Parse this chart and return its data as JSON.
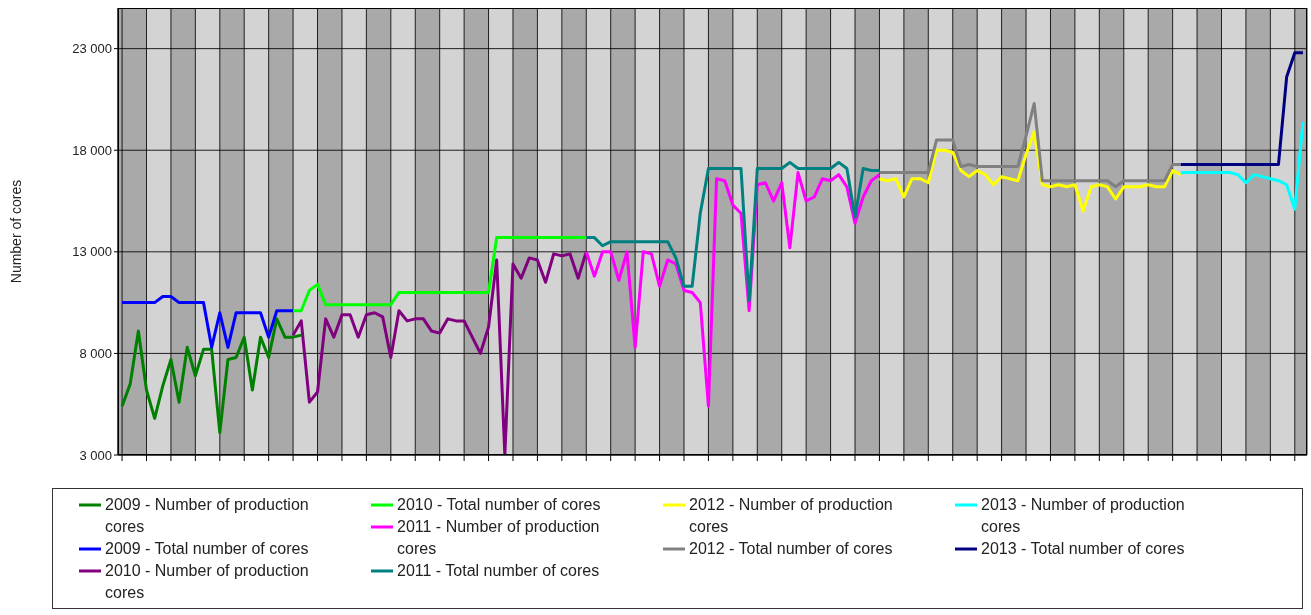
{
  "chart_data": {
    "type": "line",
    "ylabel": "Number of cores",
    "ylim": [
      3000,
      25000
    ],
    "yticks": [
      {
        "value": 3000,
        "label": "3 000"
      },
      {
        "value": 8000,
        "label": "8 000"
      },
      {
        "value": 13000,
        "label": "13 000"
      },
      {
        "value": 18000,
        "label": "18 000"
      },
      {
        "value": 23000,
        "label": "23 000"
      }
    ],
    "grid": true,
    "legend": "bottom",
    "categories": [
      null,
      null,
      null,
      null,
      null,
      null,
      null,
      null,
      null,
      null,
      null,
      null,
      null,
      null,
      null,
      null,
      null,
      null,
      null,
      null,
      null,
      null,
      null,
      null,
      null,
      null,
      null,
      null,
      null,
      null,
      null,
      null,
      null,
      null,
      null,
      null,
      null,
      null,
      null,
      null,
      null,
      null,
      null,
      null,
      null,
      null,
      null,
      null,
      null,
      null,
      null,
      null,
      null,
      null,
      null,
      null,
      null,
      null,
      null,
      null,
      null,
      null,
      null,
      null,
      null,
      null,
      null,
      null,
      null,
      null,
      null,
      null,
      null,
      null,
      null,
      null,
      null,
      null,
      null,
      null,
      null,
      null,
      null,
      null,
      null,
      null,
      null,
      null,
      null,
      null,
      null,
      null,
      null,
      null,
      null,
      null,
      null,
      null,
      null,
      null,
      null,
      null,
      null,
      null,
      null,
      null,
      null,
      null,
      null,
      null,
      null,
      null,
      null,
      null,
      null,
      null,
      null,
      null,
      null,
      null,
      null,
      null,
      null,
      null,
      null,
      null,
      null,
      null,
      null,
      null,
      null,
      null,
      null,
      null,
      null,
      null,
      null,
      null,
      null,
      null,
      null,
      null,
      null,
      null,
      null,
      null
    ],
    "series": [
      {
        "name": "2009 - Number of production cores",
        "color": "#008000",
        "values": [
          5400,
          6500,
          9100,
          6200,
          4800,
          6400,
          7700,
          5600,
          8300,
          6900,
          8200,
          8200,
          4100,
          7700,
          7800,
          8800,
          6200,
          8800,
          7800,
          9700,
          8800,
          8800,
          8900,
          null,
          null,
          null,
          null,
          null,
          null,
          null,
          null,
          null,
          null,
          null,
          null,
          null,
          null,
          null,
          null,
          null,
          null,
          null,
          null,
          null,
          null,
          null,
          null,
          null,
          null,
          null,
          null,
          null,
          null,
          null,
          null,
          null,
          null,
          null,
          null,
          null,
          null,
          null,
          null,
          null,
          null,
          null,
          null,
          null,
          null,
          null,
          null,
          null,
          null,
          null,
          null,
          null,
          null,
          null,
          null,
          null,
          null,
          null,
          null,
          null,
          null,
          null,
          null,
          null,
          null,
          null,
          null,
          null,
          null,
          null,
          null,
          null,
          null,
          null,
          null,
          null,
          null,
          null,
          null,
          null,
          null,
          null,
          null,
          null,
          null,
          null,
          null,
          null,
          null,
          null,
          null,
          null,
          null,
          null,
          null,
          null,
          null,
          null,
          null,
          null,
          null,
          null,
          null,
          null,
          null,
          null,
          null,
          null,
          null,
          null,
          null,
          null,
          null,
          null,
          null,
          null,
          null,
          null,
          null,
          null,
          null,
          null
        ]
      },
      {
        "name": "2009 - Total number of cores",
        "color": "#0000ff",
        "values": [
          10500,
          10500,
          10500,
          10500,
          10500,
          10800,
          10800,
          10500,
          10500,
          10500,
          10500,
          8300,
          10000,
          8300,
          10000,
          10000,
          10000,
          10000,
          8800,
          10100,
          10100,
          10100,
          null,
          null,
          null,
          null,
          null,
          null,
          null,
          null,
          null,
          null,
          null,
          null,
          null,
          null,
          null,
          null,
          null,
          null,
          null,
          null,
          null,
          null,
          null,
          null,
          null,
          null,
          null,
          null,
          null,
          null,
          null,
          null,
          null,
          null,
          null,
          null,
          null,
          null,
          null,
          null,
          null,
          null,
          null,
          null,
          null,
          null,
          null,
          null,
          null,
          null,
          null,
          null,
          null,
          null,
          null,
          null,
          null,
          null,
          null,
          null,
          null,
          null,
          null,
          null,
          null,
          null,
          null,
          null,
          null,
          null,
          null,
          null,
          null,
          null,
          null,
          null,
          null,
          null,
          null,
          null,
          null,
          null,
          null,
          null,
          null,
          null,
          null,
          null,
          null,
          null,
          null,
          null,
          null,
          null,
          null,
          null,
          null,
          null,
          null,
          null,
          null,
          null,
          null,
          null,
          null,
          null,
          null,
          null,
          null,
          null,
          null,
          null,
          null,
          null,
          null,
          null,
          null,
          null,
          null,
          null,
          null,
          null,
          null,
          null
        ]
      },
      {
        "name": "2010 - Number of production cores",
        "color": "#800080",
        "values": [
          null,
          null,
          null,
          null,
          null,
          null,
          null,
          null,
          null,
          null,
          null,
          null,
          null,
          null,
          null,
          null,
          null,
          null,
          null,
          null,
          null,
          8900,
          9600,
          5600,
          6100,
          9700,
          8800,
          9900,
          9900,
          8800,
          9900,
          10000,
          9800,
          7800,
          10100,
          9600,
          9700,
          9700,
          9100,
          9000,
          9700,
          9600,
          9600,
          8800,
          8000,
          9300,
          12600,
          3000,
          12400,
          11700,
          12700,
          12600,
          11500,
          12900,
          12800,
          12900,
          11700,
          13000,
          null,
          null,
          null,
          null,
          null,
          null,
          null,
          null,
          null,
          null,
          null,
          null,
          null,
          null,
          null,
          null,
          null,
          null,
          null,
          null,
          null,
          null,
          null,
          null,
          null,
          null,
          null,
          null,
          null,
          null,
          null,
          null,
          null,
          null,
          null,
          null,
          null,
          null,
          null,
          null,
          null,
          null,
          null,
          null,
          null,
          null,
          null,
          null,
          null,
          null,
          null,
          null,
          null,
          null,
          null,
          null,
          null,
          null,
          null,
          null,
          null,
          null,
          null,
          null,
          null,
          null,
          null,
          null,
          null,
          null,
          null,
          null,
          null,
          null,
          null,
          null,
          null,
          null,
          null,
          null,
          null,
          null,
          null,
          null,
          null,
          null,
          null,
          null
        ]
      },
      {
        "name": "2010 - Total number of cores",
        "color": "#00ff00",
        "values": [
          null,
          null,
          null,
          null,
          null,
          null,
          null,
          null,
          null,
          null,
          null,
          null,
          null,
          null,
          null,
          null,
          null,
          null,
          null,
          null,
          null,
          10100,
          10100,
          11100,
          11400,
          10400,
          10400,
          10400,
          10400,
          10400,
          10400,
          10400,
          10400,
          10400,
          11000,
          11000,
          11000,
          11000,
          11000,
          11000,
          11000,
          11000,
          11000,
          11000,
          11000,
          11000,
          13700,
          13700,
          13700,
          13700,
          13700,
          13700,
          13700,
          13700,
          13700,
          13700,
          13700,
          13700,
          null,
          null,
          null,
          null,
          null,
          null,
          null,
          null,
          null,
          null,
          null,
          null,
          null,
          null,
          null,
          null,
          null,
          null,
          null,
          null,
          null,
          null,
          null,
          null,
          null,
          null,
          null,
          null,
          null,
          null,
          null,
          null,
          null,
          null,
          null,
          null,
          null,
          null,
          null,
          null,
          null,
          null,
          null,
          null,
          null,
          null,
          null,
          null,
          null,
          null,
          null,
          null,
          null,
          null,
          null,
          null,
          null,
          null,
          null,
          null,
          null,
          null,
          null,
          null,
          null,
          null,
          null,
          null,
          null,
          null,
          null,
          null,
          null,
          null,
          null,
          null,
          null,
          null,
          null,
          null,
          null,
          null,
          null,
          null,
          null,
          null,
          null,
          null
        ]
      },
      {
        "name": "2011 - Number of production cores",
        "color": "#ff00ff",
        "values": [
          null,
          null,
          null,
          null,
          null,
          null,
          null,
          null,
          null,
          null,
          null,
          null,
          null,
          null,
          null,
          null,
          null,
          null,
          null,
          null,
          null,
          null,
          null,
          null,
          null,
          null,
          null,
          null,
          null,
          null,
          null,
          null,
          null,
          null,
          null,
          null,
          null,
          null,
          null,
          null,
          null,
          null,
          null,
          null,
          null,
          null,
          null,
          null,
          null,
          null,
          null,
          null,
          null,
          null,
          null,
          null,
          null,
          13000,
          11800,
          13000,
          13000,
          11600,
          13000,
          8300,
          13000,
          12900,
          11300,
          12600,
          12400,
          11100,
          11000,
          10500,
          5400,
          16600,
          16500,
          15300,
          14900,
          10100,
          16300,
          16400,
          15500,
          16400,
          13200,
          16900,
          15500,
          15700,
          16600,
          16500,
          16800,
          16200,
          14400,
          15700,
          16500,
          16800,
          null,
          null,
          null,
          null,
          null,
          null,
          null,
          null,
          null,
          null,
          null,
          null,
          null,
          null,
          null,
          null,
          null,
          null,
          null,
          null,
          null,
          null,
          null,
          null,
          null,
          null,
          null,
          null,
          null,
          null,
          null,
          null,
          null,
          null,
          null,
          null,
          null,
          null,
          null,
          null,
          null,
          null,
          null,
          null,
          null,
          null,
          null,
          null,
          null,
          null,
          null,
          null
        ]
      },
      {
        "name": "2011 - Total number of cores",
        "color": "#008080",
        "values": [
          null,
          null,
          null,
          null,
          null,
          null,
          null,
          null,
          null,
          null,
          null,
          null,
          null,
          null,
          null,
          null,
          null,
          null,
          null,
          null,
          null,
          null,
          null,
          null,
          null,
          null,
          null,
          null,
          null,
          null,
          null,
          null,
          null,
          null,
          null,
          null,
          null,
          null,
          null,
          null,
          null,
          null,
          null,
          null,
          null,
          null,
          null,
          null,
          null,
          null,
          null,
          null,
          null,
          null,
          null,
          null,
          null,
          13700,
          13700,
          13300,
          13500,
          13500,
          13500,
          13500,
          13500,
          13500,
          13500,
          13500,
          12700,
          11300,
          11300,
          14900,
          17100,
          17100,
          17100,
          17100,
          17100,
          10600,
          17100,
          17100,
          17100,
          17100,
          17400,
          17100,
          17100,
          17100,
          17100,
          17100,
          17400,
          17100,
          14700,
          17100,
          17000,
          17000,
          null,
          null,
          null,
          null,
          null,
          null,
          null,
          null,
          null,
          null,
          null,
          null,
          null,
          null,
          null,
          null,
          null,
          null,
          null,
          null,
          null,
          null,
          null,
          null,
          null,
          null,
          null,
          null,
          null,
          null,
          null,
          null,
          null,
          null,
          null,
          null,
          null,
          null,
          null,
          null,
          null,
          null,
          null,
          null,
          null,
          null,
          null,
          null,
          null,
          null,
          null,
          null
        ]
      },
      {
        "name": "2012 - Number of production cores",
        "color": "#ffff00",
        "values": [
          null,
          null,
          null,
          null,
          null,
          null,
          null,
          null,
          null,
          null,
          null,
          null,
          null,
          null,
          null,
          null,
          null,
          null,
          null,
          null,
          null,
          null,
          null,
          null,
          null,
          null,
          null,
          null,
          null,
          null,
          null,
          null,
          null,
          null,
          null,
          null,
          null,
          null,
          null,
          null,
          null,
          null,
          null,
          null,
          null,
          null,
          null,
          null,
          null,
          null,
          null,
          null,
          null,
          null,
          null,
          null,
          null,
          null,
          null,
          null,
          null,
          null,
          null,
          null,
          null,
          null,
          null,
          null,
          null,
          null,
          null,
          null,
          null,
          null,
          null,
          null,
          null,
          null,
          null,
          null,
          null,
          null,
          null,
          null,
          null,
          null,
          null,
          null,
          null,
          null,
          null,
          null,
          null,
          16600,
          16500,
          16600,
          15700,
          16600,
          16600,
          16400,
          18000,
          18000,
          17900,
          17000,
          16700,
          17000,
          16800,
          16300,
          16700,
          16600,
          16500,
          17800,
          18900,
          16300,
          16200,
          16300,
          16200,
          16300,
          15000,
          16200,
          16300,
          16200,
          15600,
          16200,
          16200,
          16200,
          16300,
          16200,
          16200,
          17000,
          16800,
          null,
          null,
          null,
          null,
          null,
          null,
          null,
          null,
          null,
          null,
          null,
          null,
          null,
          null,
          null
        ]
      },
      {
        "name": "2012 - Total number of cores",
        "color": "#808080",
        "values": [
          null,
          null,
          null,
          null,
          null,
          null,
          null,
          null,
          null,
          null,
          null,
          null,
          null,
          null,
          null,
          null,
          null,
          null,
          null,
          null,
          null,
          null,
          null,
          null,
          null,
          null,
          null,
          null,
          null,
          null,
          null,
          null,
          null,
          null,
          null,
          null,
          null,
          null,
          null,
          null,
          null,
          null,
          null,
          null,
          null,
          null,
          null,
          null,
          null,
          null,
          null,
          null,
          null,
          null,
          null,
          null,
          null,
          null,
          null,
          null,
          null,
          null,
          null,
          null,
          null,
          null,
          null,
          null,
          null,
          null,
          null,
          null,
          null,
          null,
          null,
          null,
          null,
          null,
          null,
          null,
          null,
          null,
          null,
          null,
          null,
          null,
          null,
          null,
          null,
          null,
          null,
          null,
          null,
          16900,
          16900,
          16900,
          16900,
          16900,
          16900,
          16900,
          18500,
          18500,
          18500,
          17200,
          17300,
          17200,
          17200,
          17200,
          17200,
          17200,
          17200,
          18700,
          20300,
          16500,
          16500,
          16500,
          16500,
          16500,
          16500,
          16500,
          16500,
          16500,
          16200,
          16500,
          16500,
          16500,
          16500,
          16500,
          16500,
          17300,
          17300,
          null,
          null,
          null,
          null,
          null,
          null,
          null,
          null,
          null,
          null,
          null,
          null,
          null,
          null,
          null
        ]
      },
      {
        "name": "2013 - Number of production cores",
        "color": "#00ffff",
        "values": [
          null,
          null,
          null,
          null,
          null,
          null,
          null,
          null,
          null,
          null,
          null,
          null,
          null,
          null,
          null,
          null,
          null,
          null,
          null,
          null,
          null,
          null,
          null,
          null,
          null,
          null,
          null,
          null,
          null,
          null,
          null,
          null,
          null,
          null,
          null,
          null,
          null,
          null,
          null,
          null,
          null,
          null,
          null,
          null,
          null,
          null,
          null,
          null,
          null,
          null,
          null,
          null,
          null,
          null,
          null,
          null,
          null,
          null,
          null,
          null,
          null,
          null,
          null,
          null,
          null,
          null,
          null,
          null,
          null,
          null,
          null,
          null,
          null,
          null,
          null,
          null,
          null,
          null,
          null,
          null,
          null,
          null,
          null,
          null,
          null,
          null,
          null,
          null,
          null,
          null,
          null,
          null,
          null,
          null,
          null,
          null,
          null,
          null,
          null,
          null,
          null,
          null,
          null,
          null,
          null,
          null,
          null,
          null,
          null,
          null,
          null,
          null,
          null,
          null,
          null,
          null,
          null,
          null,
          null,
          null,
          null,
          null,
          null,
          null,
          null,
          null,
          null,
          null,
          null,
          null,
          16900,
          16900,
          16900,
          16900,
          16900,
          16900,
          16900,
          16800,
          16400,
          16800,
          16700,
          16600,
          16500,
          16300,
          15100,
          19400
        ]
      },
      {
        "name": "2013 - Total number of cores",
        "color": "#000080",
        "values": [
          null,
          null,
          null,
          null,
          null,
          null,
          null,
          null,
          null,
          null,
          null,
          null,
          null,
          null,
          null,
          null,
          null,
          null,
          null,
          null,
          null,
          null,
          null,
          null,
          null,
          null,
          null,
          null,
          null,
          null,
          null,
          null,
          null,
          null,
          null,
          null,
          null,
          null,
          null,
          null,
          null,
          null,
          null,
          null,
          null,
          null,
          null,
          null,
          null,
          null,
          null,
          null,
          null,
          null,
          null,
          null,
          null,
          null,
          null,
          null,
          null,
          null,
          null,
          null,
          null,
          null,
          null,
          null,
          null,
          null,
          null,
          null,
          null,
          null,
          null,
          null,
          null,
          null,
          null,
          null,
          null,
          null,
          null,
          null,
          null,
          null,
          null,
          null,
          null,
          null,
          null,
          null,
          null,
          null,
          null,
          null,
          null,
          null,
          null,
          null,
          null,
          null,
          null,
          null,
          null,
          null,
          null,
          null,
          null,
          null,
          null,
          null,
          null,
          null,
          null,
          null,
          null,
          null,
          null,
          null,
          null,
          null,
          null,
          null,
          null,
          null,
          null,
          null,
          null,
          null,
          17300,
          17300,
          17300,
          17300,
          17300,
          17300,
          17300,
          17300,
          17300,
          17300,
          17300,
          17300,
          17300,
          21600,
          22800,
          22800
        ]
      }
    ]
  }
}
